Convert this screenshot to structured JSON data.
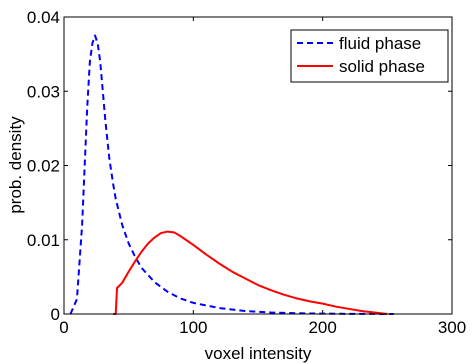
{
  "chart_data": {
    "type": "line",
    "xlabel": "voxel intensity",
    "ylabel": "prob. density",
    "xlim": [
      0,
      300
    ],
    "ylim": [
      0,
      0.04
    ],
    "x_ticks": [
      "0",
      "100",
      "200",
      "300"
    ],
    "y_ticks": [
      "0",
      "0.01",
      "0.02",
      "0.03",
      "0.04"
    ],
    "grid": false,
    "legend_position": "top-right",
    "series": [
      {
        "name": "fluid phase",
        "color": "#0000ff",
        "line_style": "dashed",
        "x": [
          5,
          10,
          14,
          18,
          20,
          22,
          24,
          26,
          28,
          30,
          32,
          35,
          38,
          40,
          45,
          50,
          55,
          60,
          70,
          80,
          90,
          100,
          120,
          140,
          160,
          180,
          200,
          220,
          240,
          255
        ],
        "y": [
          0,
          0.002,
          0.012,
          0.028,
          0.034,
          0.0365,
          0.0375,
          0.0365,
          0.034,
          0.03,
          0.026,
          0.021,
          0.0175,
          0.0155,
          0.012,
          0.0095,
          0.0077,
          0.0062,
          0.0043,
          0.003,
          0.0021,
          0.0015,
          0.0008,
          0.0004,
          0.0002,
          0.0001,
          5e-05,
          2e-05,
          1e-05,
          0
        ]
      },
      {
        "name": "solid phase",
        "color": "#ff0000",
        "line_style": "solid",
        "x": [
          38,
          40,
          41,
          45,
          50,
          55,
          60,
          65,
          70,
          75,
          80,
          85,
          90,
          95,
          100,
          110,
          120,
          130,
          140,
          150,
          160,
          170,
          180,
          190,
          200,
          210,
          220,
          230,
          240,
          250
        ],
        "y": [
          0,
          0,
          0.0035,
          0.0042,
          0.0057,
          0.0071,
          0.0084,
          0.0095,
          0.0103,
          0.0109,
          0.0111,
          0.011,
          0.0105,
          0.0099,
          0.0093,
          0.008,
          0.0068,
          0.0057,
          0.0048,
          0.0039,
          0.0032,
          0.0026,
          0.0021,
          0.0017,
          0.0014,
          0.001,
          0.0007,
          0.0004,
          0.0002,
          0
        ]
      }
    ]
  }
}
